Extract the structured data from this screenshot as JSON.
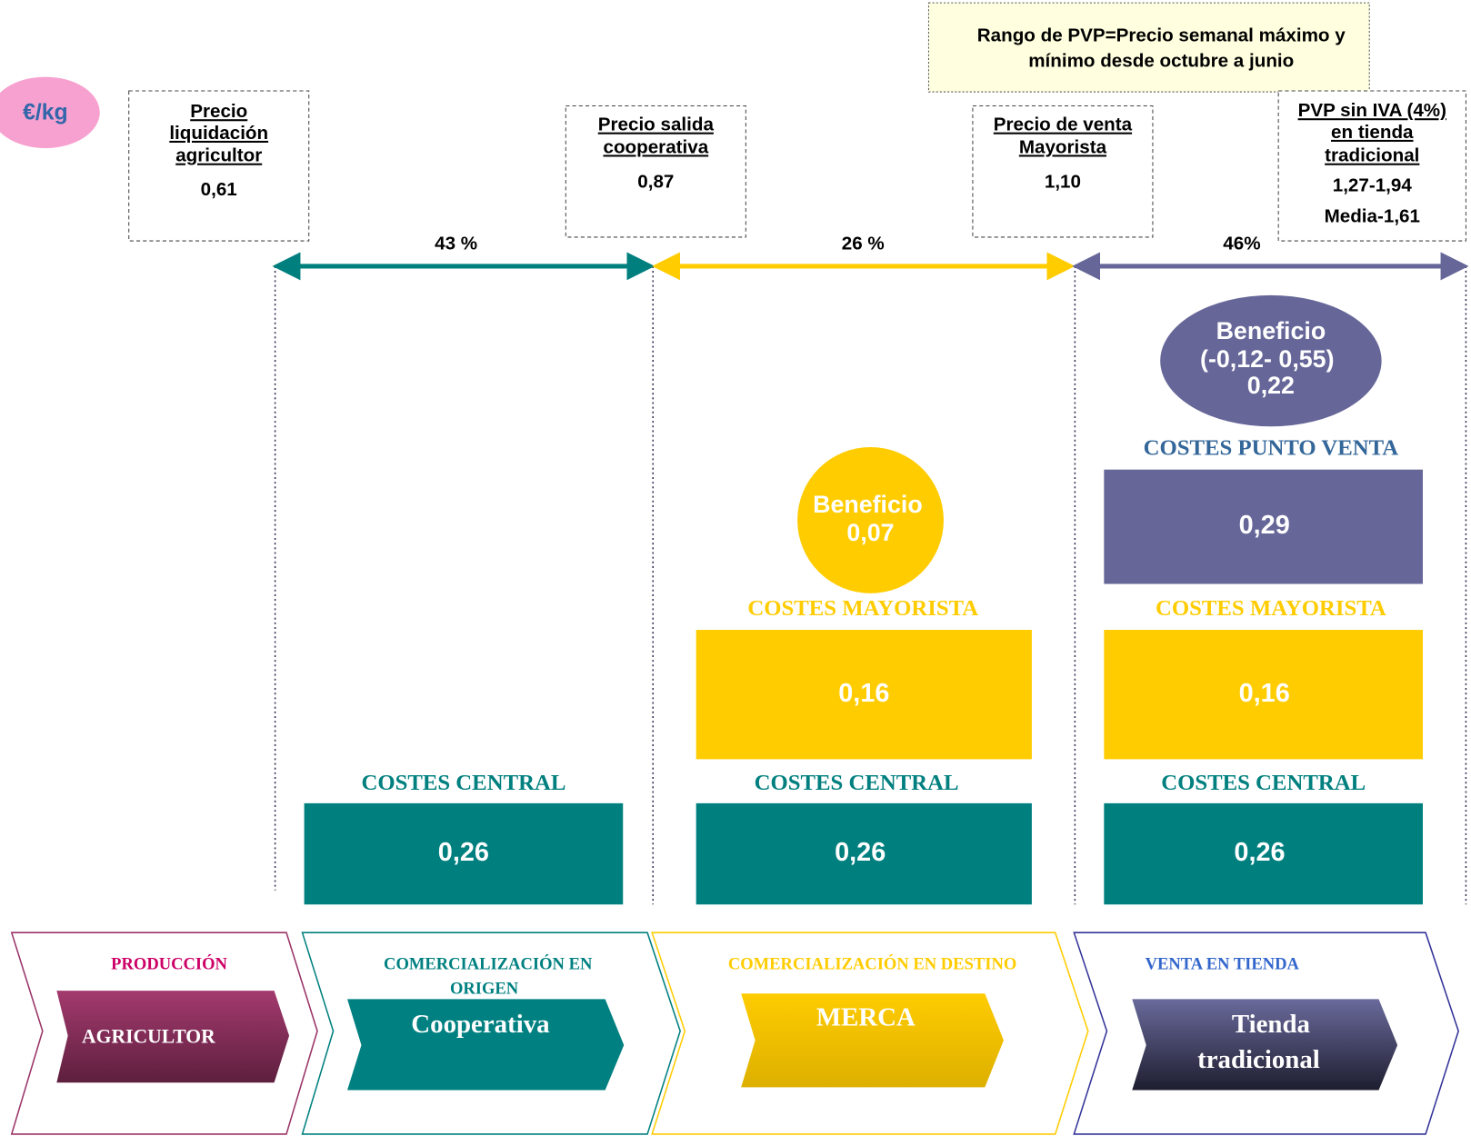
{
  "unit": "€/kg",
  "note": {
    "lines": [
      "Rango de PVP=Precio semanal máximo y",
      "mínimo desde octubre a junio"
    ]
  },
  "price_boxes": [
    {
      "title": [
        "Precio",
        "liquidación",
        "agricultor"
      ],
      "values": [
        "0,61"
      ]
    },
    {
      "title": [
        "Precio salida",
        "cooperativa"
      ],
      "values": [
        "0,87"
      ]
    },
    {
      "title": [
        "Precio de venta",
        "Mayorista"
      ],
      "values": [
        "1,10"
      ]
    },
    {
      "title": [
        "PVP sin IVA (4%)",
        "en tienda",
        "tradicional"
      ],
      "values": [
        "1,27-1,94",
        "Media-1,61"
      ]
    }
  ],
  "margins": [
    "43 %",
    "26 %",
    "46%"
  ],
  "columns": [
    {
      "costs": [
        {
          "label": "COSTES CENTRAL",
          "value": "0,26"
        }
      ]
    },
    {
      "costs": [
        {
          "label": "COSTES CENTRAL",
          "value": "0,26"
        },
        {
          "label": "COSTES MAYORISTA",
          "value": "0,16"
        }
      ],
      "profit": [
        "Beneficio",
        "0,07"
      ]
    },
    {
      "costs": [
        {
          "label": "COSTES CENTRAL",
          "value": "0,26"
        },
        {
          "label": "COSTES MAYORISTA",
          "value": "0,16"
        },
        {
          "label": "COSTES PUNTO VENTA",
          "value": "0,29"
        }
      ],
      "profit": [
        "Beneficio",
        "(-0,12- 0,55)",
        "0,22"
      ]
    }
  ],
  "stages": [
    {
      "header": [
        "PRODUCCIÓN"
      ],
      "actor": [
        "AGRICULTOR"
      ]
    },
    {
      "header": [
        "COMERCIALIZACIÓN EN",
        "ORIGEN"
      ],
      "actor": [
        "Cooperativa"
      ]
    },
    {
      "header": [
        "COMERCIALIZACIÓN EN DESTINO"
      ],
      "actor": [
        "MERCA"
      ]
    },
    {
      "header": [
        "VENTA EN TIENDA"
      ],
      "actor": [
        "Tienda",
        "tradicional"
      ]
    }
  ]
}
